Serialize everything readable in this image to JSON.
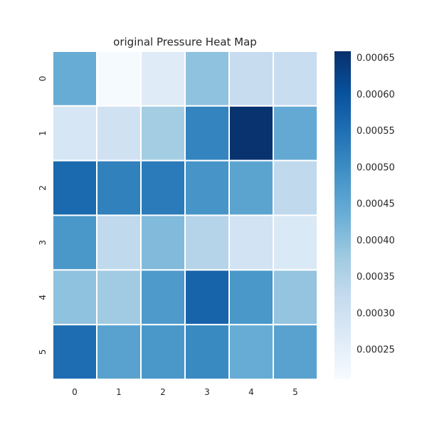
{
  "chart_data": {
    "type": "heatmap",
    "title": "original Pressure Heat Map",
    "xlabel": "",
    "ylabel": "",
    "x_categories": [
      "0",
      "1",
      "2",
      "3",
      "4",
      "5"
    ],
    "y_categories": [
      "0",
      "1",
      "2",
      "3",
      "4",
      "5"
    ],
    "values": [
      [
        0.00044,
        0.000215,
        0.000265,
        0.000395,
        0.00032,
        0.000315
      ],
      [
        0.000285,
        0.0003,
        0.00037,
        0.000515,
        0.000655,
        0.000445
      ],
      [
        0.00056,
        0.00052,
        0.00053,
        0.000485,
        0.000455,
        0.00033
      ],
      [
        0.00048,
        0.00033,
        0.00041,
        0.000345,
        0.000295,
        0.000275
      ],
      [
        0.000395,
        0.000375,
        0.000475,
        0.00057,
        0.00048,
        0.00039
      ],
      [
        0.000555,
        0.00046,
        0.00048,
        0.000505,
        0.00044,
        0.00046
      ]
    ],
    "colormap": "Blues",
    "cbar_range": [
      0.00021,
      0.00066
    ],
    "colorbar_ticks": [
      "0.00025",
      "0.00030",
      "0.00035",
      "0.00040",
      "0.00045",
      "0.00050",
      "0.00055",
      "0.00060",
      "0.00065"
    ],
    "colorbar_tick_values": [
      0.00025,
      0.0003,
      0.00035,
      0.0004,
      0.00045,
      0.0005,
      0.00055,
      0.0006,
      0.00065
    ],
    "cell_border_color": "#ffffff",
    "grid": false,
    "legend": "colorbar-right"
  }
}
